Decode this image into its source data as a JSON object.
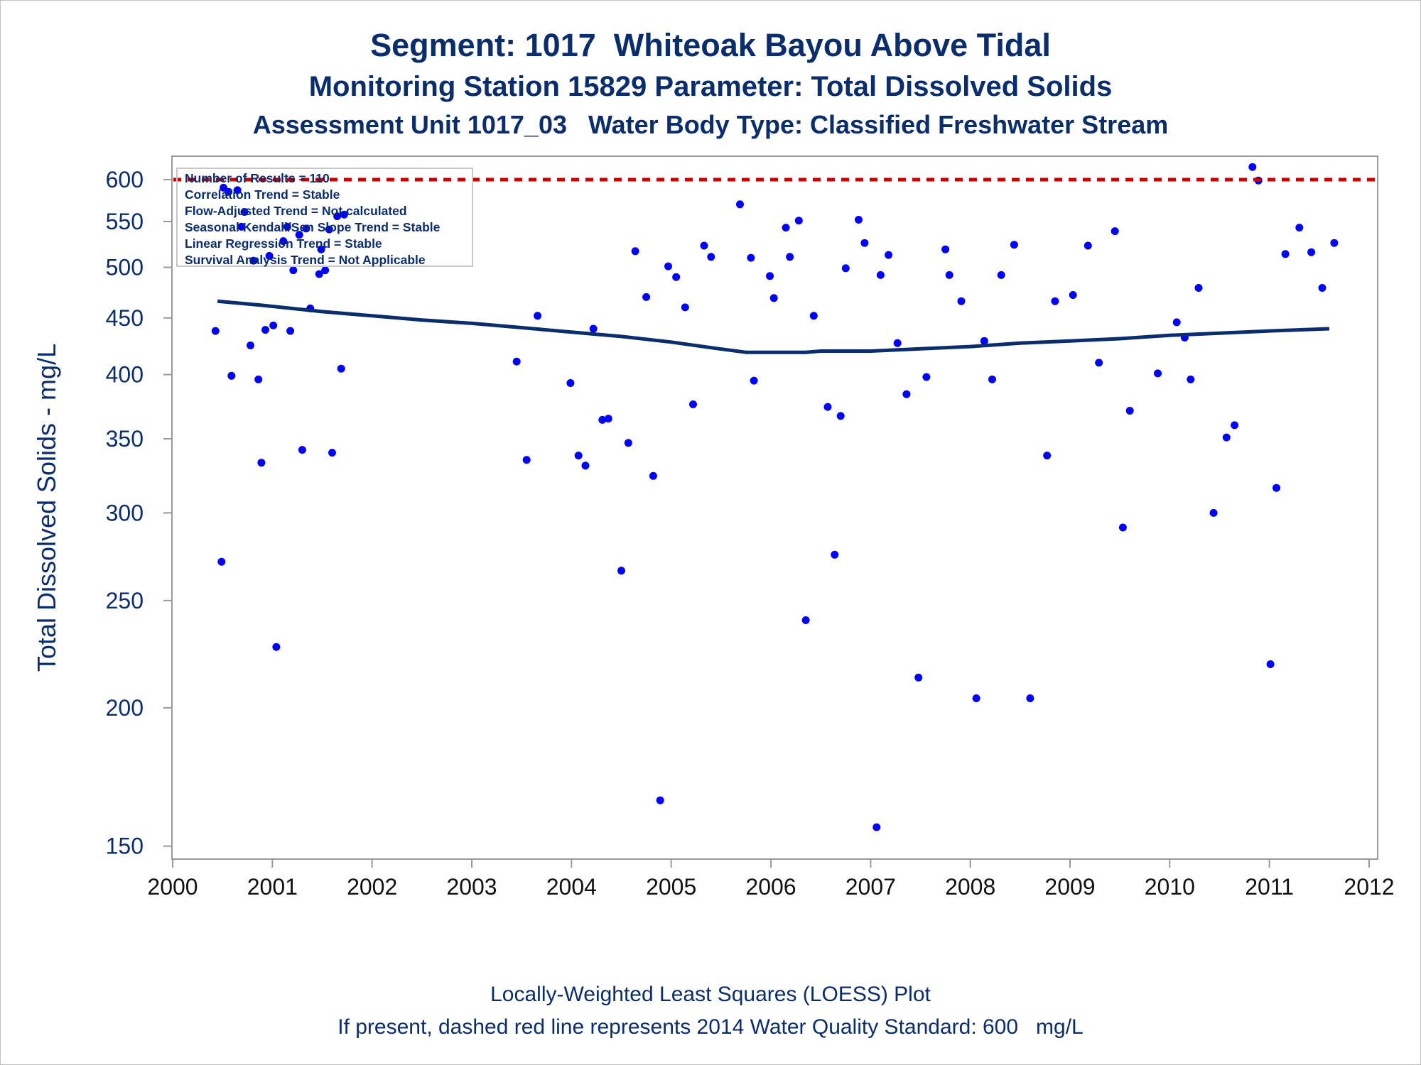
{
  "titles": {
    "line1": "Segment: 1017  Whiteoak Bayou Above Tidal",
    "line2": "Monitoring Station 15829 Parameter: Total Dissolved Solids",
    "line3": "Assessment Unit 1017_03   Water Body Type: Classified Freshwater Stream"
  },
  "footnotes": {
    "line1": "Locally-Weighted Least Squares (LOESS) Plot",
    "line2": "If present, dashed red line represents 2014 Water Quality Standard: 600   mg/L"
  },
  "stats_box": [
    "Number of Results = 110",
    "Correlation Trend = Stable",
    "Flow-Adjusted Trend = Not calculated",
    "Seasonal Kendall/Sen Slope Trend = Stable",
    "Linear Regression Trend = Stable",
    "Survival Analysis Trend = Not Applicable"
  ],
  "colors": {
    "title": "#0a2d6e",
    "points": "#0000ff",
    "loess": "#0a2d6e",
    "standard": "#cc0000",
    "axis": "#9a9a9a"
  },
  "chart_data": {
    "type": "scatter",
    "title": "Segment: 1017  Whiteoak Bayou Above Tidal",
    "ylabel": "Total Dissolved Solids - mg/L",
    "xlabel": "",
    "x_ticks": [
      "2000",
      "2001",
      "2002",
      "2003",
      "2004",
      "2005",
      "2006",
      "2007",
      "2008",
      "2009",
      "2010",
      "2011",
      "2012"
    ],
    "y_ticks": [
      150,
      200,
      250,
      300,
      350,
      400,
      450,
      500,
      550,
      600
    ],
    "y_scale": "log",
    "xlim": [
      2000,
      2012.1
    ],
    "ylim": [
      146,
      630
    ],
    "grid": false,
    "standard_line": {
      "value": 600,
      "label": "2014 Water Quality Standard: 600 mg/L",
      "style": "dashed"
    },
    "series": [
      {
        "type": "scatter",
        "points": [
          [
            2000.43,
            438
          ],
          [
            2000.49,
            271
          ],
          [
            2000.51,
            590
          ],
          [
            2000.56,
            585
          ],
          [
            2000.59,
            399
          ],
          [
            2000.65,
            587
          ],
          [
            2000.69,
            544
          ],
          [
            2000.72,
            561
          ],
          [
            2000.78,
            425
          ],
          [
            2000.81,
            507
          ],
          [
            2000.86,
            396
          ],
          [
            2000.89,
            333
          ],
          [
            2000.93,
            439
          ],
          [
            2000.97,
            512
          ],
          [
            2001.01,
            443
          ],
          [
            2001.04,
            227
          ],
          [
            2001.11,
            528
          ],
          [
            2001.15,
            544
          ],
          [
            2001.18,
            438
          ],
          [
            2001.21,
            497
          ],
          [
            2001.27,
            535
          ],
          [
            2001.3,
            342
          ],
          [
            2001.34,
            542
          ],
          [
            2001.38,
            459
          ],
          [
            2001.47,
            493
          ],
          [
            2001.49,
            519
          ],
          [
            2001.53,
            497
          ],
          [
            2001.57,
            541
          ],
          [
            2001.6,
            340
          ],
          [
            2001.65,
            556
          ],
          [
            2001.69,
            405
          ],
          [
            2001.72,
            558
          ],
          [
            2003.45,
            411
          ],
          [
            2003.55,
            335
          ],
          [
            2003.66,
            452
          ],
          [
            2003.99,
            393
          ],
          [
            2004.07,
            338
          ],
          [
            2004.14,
            331
          ],
          [
            2004.22,
            440
          ],
          [
            2004.31,
            364
          ],
          [
            2004.37,
            365
          ],
          [
            2004.5,
            266
          ],
          [
            2004.57,
            347
          ],
          [
            2004.64,
            517
          ],
          [
            2004.75,
            470
          ],
          [
            2004.82,
            324
          ],
          [
            2004.89,
            165
          ],
          [
            2004.97,
            501
          ],
          [
            2005.05,
            490
          ],
          [
            2005.14,
            460
          ],
          [
            2005.22,
            376
          ],
          [
            2005.33,
            523
          ],
          [
            2005.4,
            511
          ],
          [
            2005.69,
            570
          ],
          [
            2005.8,
            510
          ],
          [
            2005.83,
            395
          ],
          [
            2005.99,
            491
          ],
          [
            2006.03,
            469
          ],
          [
            2006.15,
            543
          ],
          [
            2006.19,
            511
          ],
          [
            2006.28,
            551
          ],
          [
            2006.35,
            240
          ],
          [
            2006.43,
            452
          ],
          [
            2006.57,
            374
          ],
          [
            2006.64,
            275
          ],
          [
            2006.7,
            367
          ],
          [
            2006.75,
            499
          ],
          [
            2006.88,
            552
          ],
          [
            2006.94,
            526
          ],
          [
            2007.06,
            156
          ],
          [
            2007.1,
            492
          ],
          [
            2007.18,
            513
          ],
          [
            2007.27,
            427
          ],
          [
            2007.36,
            384
          ],
          [
            2007.48,
            213
          ],
          [
            2007.56,
            398
          ],
          [
            2007.75,
            519
          ],
          [
            2007.79,
            492
          ],
          [
            2007.91,
            466
          ],
          [
            2008.06,
            204
          ],
          [
            2008.14,
            429
          ],
          [
            2008.22,
            396
          ],
          [
            2008.31,
            492
          ],
          [
            2008.44,
            524
          ],
          [
            2008.6,
            204
          ],
          [
            2008.77,
            338
          ],
          [
            2008.85,
            466
          ],
          [
            2009.03,
            472
          ],
          [
            2009.18,
            523
          ],
          [
            2009.29,
            410
          ],
          [
            2009.45,
            539
          ],
          [
            2009.53,
            291
          ],
          [
            2009.6,
            371
          ],
          [
            2009.88,
            401
          ],
          [
            2010.07,
            446
          ],
          [
            2010.15,
            432
          ],
          [
            2010.21,
            396
          ],
          [
            2010.29,
            479
          ],
          [
            2010.44,
            300
          ],
          [
            2010.57,
            351
          ],
          [
            2010.65,
            360
          ],
          [
            2010.83,
            616
          ],
          [
            2010.89,
            599
          ],
          [
            2011.01,
            219
          ],
          [
            2011.07,
            316
          ],
          [
            2011.16,
            514
          ],
          [
            2011.3,
            543
          ],
          [
            2011.42,
            516
          ],
          [
            2011.53,
            479
          ],
          [
            2011.65,
            526
          ]
        ]
      },
      {
        "type": "line",
        "name": "",
        "points": [
          [
            2000.45,
            466
          ],
          [
            2000.9,
            462
          ],
          [
            2001.5,
            456
          ],
          [
            2002.0,
            452
          ],
          [
            2002.5,
            448
          ],
          [
            2003.0,
            445
          ],
          [
            2003.5,
            441
          ],
          [
            2004.0,
            437
          ],
          [
            2004.5,
            433
          ],
          [
            2005.0,
            428
          ],
          [
            2005.4,
            423
          ],
          [
            2005.75,
            419
          ],
          [
            2006.0,
            419
          ],
          [
            2006.35,
            419
          ],
          [
            2006.5,
            420
          ],
          [
            2007.0,
            420
          ],
          [
            2007.5,
            422
          ],
          [
            2008.0,
            424
          ],
          [
            2008.5,
            427
          ],
          [
            2009.0,
            429
          ],
          [
            2009.5,
            431
          ],
          [
            2010.0,
            434
          ],
          [
            2010.5,
            436
          ],
          [
            2011.0,
            438
          ],
          [
            2011.6,
            440
          ]
        ]
      }
    ]
  }
}
